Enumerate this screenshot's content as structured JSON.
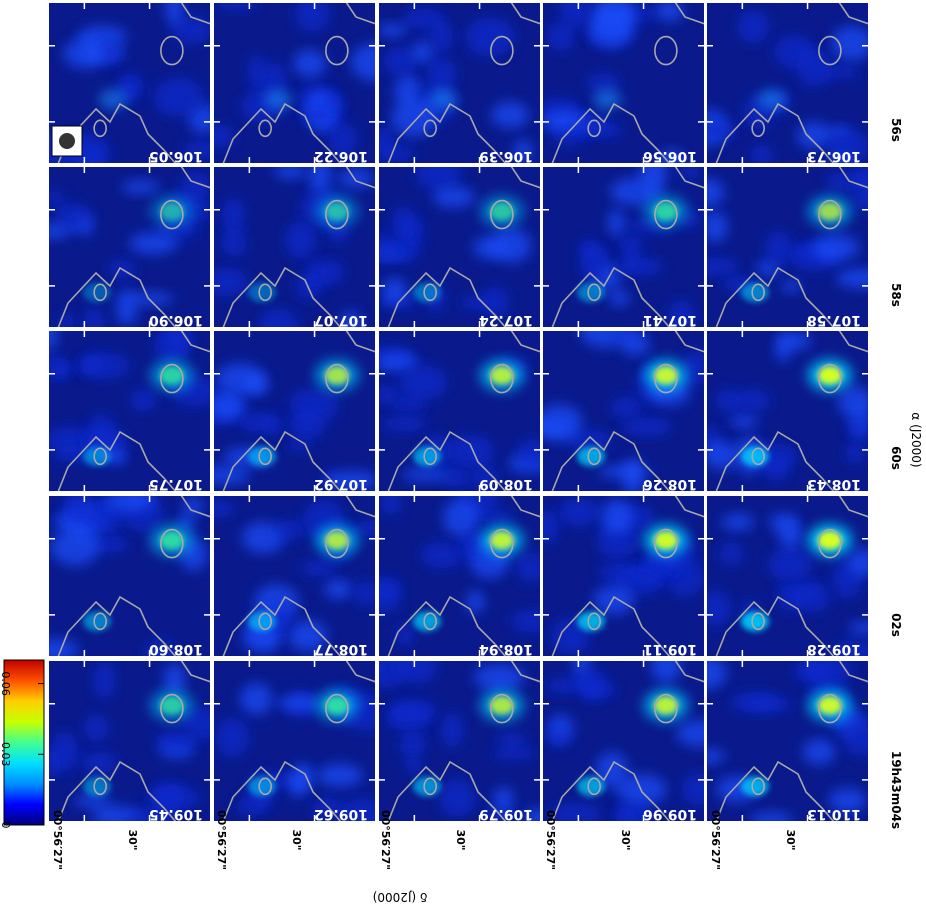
{
  "figure": {
    "x_axis_label": "α (J2000)",
    "y_axis_label": "δ (J2000)",
    "x_tick_labels": [
      "19h43m04s",
      "02s",
      "60s",
      "58s",
      "56s"
    ],
    "y_tick_labels_pairs": [
      [
        "30\"",
        "00°56′27\""
      ],
      [
        "30\"",
        "00°56′27\""
      ],
      [
        "30\"",
        "00°56′27\""
      ],
      [
        "30\"",
        "00°56′27\""
      ],
      [
        "30\"",
        "00°56′27\""
      ]
    ]
  },
  "colorbar": {
    "tick_labels": [
      "0",
      "0.03",
      "0.06"
    ],
    "min": 0,
    "max": 0.07,
    "colors": [
      "#00007a",
      "#0000ff",
      "#0090ff",
      "#00e0ff",
      "#40ff90",
      "#c8ff00",
      "#ffd000",
      "#ff5000",
      "#c00000"
    ]
  },
  "channels": [
    [
      "106.05",
      "106.22",
      "106.39",
      "106.56",
      "106.73"
    ],
    [
      "106.90",
      "107.07",
      "107.24",
      "107.41",
      "107.58"
    ],
    [
      "107.75",
      "107.92",
      "108.09",
      "108.26",
      "108.43"
    ],
    [
      "108.60",
      "108.77",
      "108.94",
      "109.11",
      "109.28"
    ],
    [
      "109.45",
      "109.62",
      "109.79",
      "109.96",
      "110.13"
    ]
  ],
  "colors": {
    "background_dark": "#0a1a8c",
    "contour": "#a8a8a8",
    "separator": "#ffffff"
  }
}
